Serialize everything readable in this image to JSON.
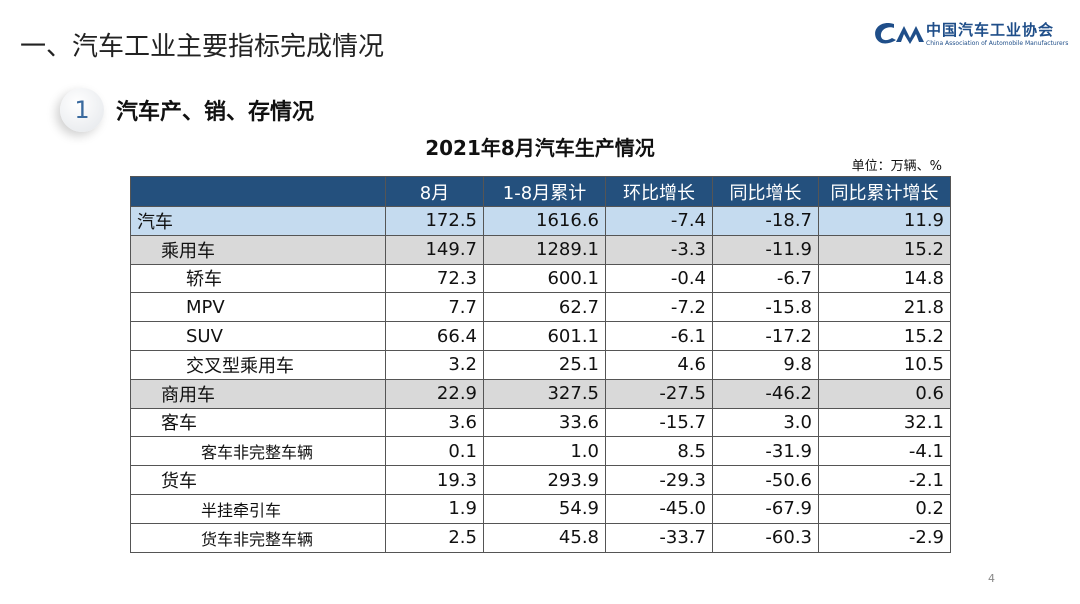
{
  "header": {
    "title": "一、汽车工业主要指标完成情况"
  },
  "logo": {
    "name": "中国汽车工业协会",
    "subtitle": "China Association of Automobile Manufacturers"
  },
  "section": {
    "number": "1",
    "label": "汽车产、销、存情况"
  },
  "table": {
    "title": "2021年8月汽车生产情况",
    "unit": "单位：万辆、%",
    "columns": [
      "",
      "8月",
      "1-8月累计",
      "环比增长",
      "同比增长",
      "同比累计增长"
    ],
    "rows": [
      {
        "name": "汽车",
        "level": 0,
        "style": "total",
        "values": [
          "172.5",
          "1616.6",
          "-7.4",
          "-18.7",
          "11.9"
        ]
      },
      {
        "name": "乘用车",
        "level": 1,
        "style": "sub",
        "values": [
          "149.7",
          "1289.1",
          "-3.3",
          "-11.9",
          "15.2"
        ]
      },
      {
        "name": "轿车",
        "level": 2,
        "style": "",
        "values": [
          "72.3",
          "600.1",
          "-0.4",
          "-6.7",
          "14.8"
        ]
      },
      {
        "name": "MPV",
        "level": 2,
        "style": "",
        "values": [
          "7.7",
          "62.7",
          "-7.2",
          "-15.8",
          "21.8"
        ]
      },
      {
        "name": "SUV",
        "level": 2,
        "style": "",
        "values": [
          "66.4",
          "601.1",
          "-6.1",
          "-17.2",
          "15.2"
        ]
      },
      {
        "name": "交叉型乘用车",
        "level": 2,
        "style": "",
        "values": [
          "3.2",
          "25.1",
          "4.6",
          "9.8",
          "10.5"
        ]
      },
      {
        "name": "商用车",
        "level": 1,
        "style": "sub",
        "values": [
          "22.9",
          "327.5",
          "-27.5",
          "-46.2",
          "0.6"
        ]
      },
      {
        "name": "客车",
        "level": 1,
        "style": "",
        "values": [
          "3.6",
          "33.6",
          "-15.7",
          "3.0",
          "32.1"
        ]
      },
      {
        "name": "客车非完整车辆",
        "level": 3,
        "style": "",
        "values": [
          "0.1",
          "1.0",
          "8.5",
          "-31.9",
          "-4.1"
        ]
      },
      {
        "name": "货车",
        "level": 1,
        "style": "",
        "values": [
          "19.3",
          "293.9",
          "-29.3",
          "-50.6",
          "-2.1"
        ]
      },
      {
        "name": "半挂牵引车",
        "level": 3,
        "style": "",
        "values": [
          "1.9",
          "54.9",
          "-45.0",
          "-67.9",
          "0.2"
        ]
      },
      {
        "name": "货车非完整车辆",
        "level": 3,
        "style": "",
        "values": [
          "2.5",
          "45.8",
          "-33.7",
          "-60.3",
          "-2.9"
        ]
      }
    ]
  },
  "page_number": "4",
  "colors": {
    "header_bg": "#24507d",
    "total_row": "#c5dbef",
    "subtotal_row": "#d9d9d9",
    "brand": "#1f4e89"
  }
}
